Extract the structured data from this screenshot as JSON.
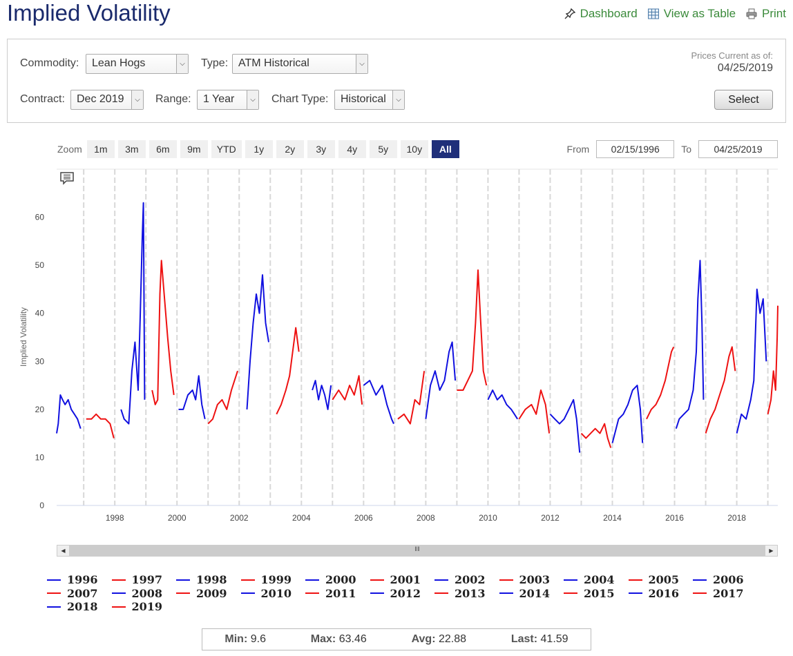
{
  "page_title": "Implied Volatility",
  "links": {
    "dashboard": "Dashboard",
    "view_table": "View as Table",
    "print": "Print"
  },
  "controls": {
    "commodity_label": "Commodity:",
    "commodity_value": "Lean Hogs",
    "type_label": "Type:",
    "type_value": "ATM Historical",
    "contract_label": "Contract:",
    "contract_value": "Dec 2019",
    "range_label": "Range:",
    "range_value": "1 Year",
    "charttype_label": "Chart Type:",
    "charttype_value": "Historical",
    "prices_current_label": "Prices Current as of:",
    "prices_current_date": "04/25/2019",
    "select_button": "Select"
  },
  "zoom": {
    "label": "Zoom",
    "buttons": [
      "1m",
      "3m",
      "6m",
      "9m",
      "YTD",
      "1y",
      "2y",
      "3y",
      "4y",
      "5y",
      "10y",
      "All"
    ],
    "active": "All"
  },
  "date_range": {
    "from_label": "From",
    "from_value": "02/15/1996",
    "to_label": "To",
    "to_value": "04/25/2019"
  },
  "stats": {
    "min_label": "Min:",
    "min_value": "9.6",
    "max_label": "Max:",
    "max_value": "63.46",
    "avg_label": "Avg:",
    "avg_value": "22.88",
    "last_label": "Last:",
    "last_value": "41.59"
  },
  "colors": {
    "blue": "#1010e0",
    "red": "#ee1111",
    "title": "#1a2a6c",
    "link": "#3a8a3a",
    "active_zoom": "#1f2f7a"
  },
  "chart_data": {
    "type": "line",
    "title": "",
    "xlabel": "",
    "ylabel": "Implied Volatility",
    "ylim": [
      0,
      70
    ],
    "yticks": [
      0,
      10,
      20,
      30,
      40,
      50,
      60
    ],
    "xlim": [
      1996.13,
      2019.32
    ],
    "xticks": [
      1998,
      2000,
      2002,
      2004,
      2006,
      2008,
      2010,
      2012,
      2014,
      2016,
      2018
    ],
    "grid": "vertical dashed",
    "legend_position": "bottom",
    "series": [
      {
        "name": "1996",
        "color": "#1010e0",
        "x": [
          1996.13,
          1996.18,
          1996.25,
          1996.32,
          1996.4,
          1996.5,
          1996.6,
          1996.7,
          1996.8,
          1996.9
        ],
        "y": [
          15,
          17,
          23,
          22,
          21,
          22,
          20,
          19,
          18,
          16
        ]
      },
      {
        "name": "1997",
        "color": "#ee1111",
        "x": [
          1997.08,
          1997.25,
          1997.4,
          1997.55,
          1997.7,
          1997.85,
          1997.97
        ],
        "y": [
          18,
          18,
          19,
          18,
          18,
          17,
          14
        ]
      },
      {
        "name": "1998",
        "color": "#1010e0",
        "x": [
          1998.2,
          1998.3,
          1998.45,
          1998.55,
          1998.65,
          1998.75,
          1998.82,
          1998.88,
          1998.92,
          1998.96
        ],
        "y": [
          20,
          18,
          17,
          28,
          34,
          24,
          40,
          55,
          63,
          22
        ]
      },
      {
        "name": "1999",
        "color": "#ee1111",
        "x": [
          1999.2,
          1999.3,
          1999.38,
          1999.45,
          1999.5,
          1999.6,
          1999.7,
          1999.8,
          1999.9
        ],
        "y": [
          24,
          21,
          22,
          44,
          51,
          43,
          35,
          28,
          23
        ]
      },
      {
        "name": "2000",
        "color": "#1010e0",
        "x": [
          2000.05,
          2000.2,
          2000.35,
          2000.5,
          2000.6,
          2000.7,
          2000.8,
          2000.9
        ],
        "y": [
          20,
          20,
          23,
          24,
          22,
          27,
          21,
          18
        ]
      },
      {
        "name": "2001",
        "color": "#ee1111",
        "x": [
          2001.0,
          2001.15,
          2001.3,
          2001.45,
          2001.6,
          2001.75,
          2001.85,
          2001.95
        ],
        "y": [
          17,
          18,
          21,
          22,
          20,
          24,
          26,
          28
        ]
      },
      {
        "name": "2002",
        "color": "#1010e0",
        "x": [
          2002.25,
          2002.35,
          2002.45,
          2002.55,
          2002.65,
          2002.75,
          2002.85,
          2002.95
        ],
        "y": [
          20,
          30,
          38,
          44,
          40,
          48,
          38,
          34
        ]
      },
      {
        "name": "2003",
        "color": "#ee1111",
        "x": [
          2003.2,
          2003.35,
          2003.5,
          2003.62,
          2003.72,
          2003.82,
          2003.92
        ],
        "y": [
          19,
          21,
          24,
          27,
          32,
          37,
          32
        ]
      },
      {
        "name": "2004",
        "color": "#1010e0",
        "x": [
          2004.35,
          2004.45,
          2004.55,
          2004.65,
          2004.75,
          2004.85,
          2004.95
        ],
        "y": [
          24,
          26,
          22,
          25,
          23,
          20,
          25
        ]
      },
      {
        "name": "2005",
        "color": "#ee1111",
        "x": [
          2005.0,
          2005.2,
          2005.4,
          2005.55,
          2005.7,
          2005.85,
          2005.95
        ],
        "y": [
          22,
          24,
          22,
          25,
          23,
          27,
          21
        ]
      },
      {
        "name": "2006",
        "color": "#1010e0",
        "x": [
          2006.0,
          2006.2,
          2006.4,
          2006.6,
          2006.75,
          2006.9,
          2006.97
        ],
        "y": [
          25,
          26,
          23,
          25,
          21,
          18,
          17
        ]
      },
      {
        "name": "2007",
        "color": "#ee1111",
        "x": [
          2007.1,
          2007.3,
          2007.5,
          2007.65,
          2007.8,
          2007.95
        ],
        "y": [
          18,
          19,
          17,
          22,
          21,
          28
        ]
      },
      {
        "name": "2008",
        "color": "#1010e0",
        "x": [
          2008.0,
          2008.15,
          2008.3,
          2008.45,
          2008.6,
          2008.75,
          2008.85,
          2008.95
        ],
        "y": [
          18,
          25,
          28,
          24,
          26,
          32,
          34,
          26
        ]
      },
      {
        "name": "2009",
        "color": "#ee1111",
        "x": [
          2009.0,
          2009.2,
          2009.35,
          2009.5,
          2009.6,
          2009.68,
          2009.75,
          2009.85,
          2009.95
        ],
        "y": [
          24,
          24,
          26,
          28,
          38,
          49,
          40,
          28,
          25
        ]
      },
      {
        "name": "2010",
        "color": "#1010e0",
        "x": [
          2010.0,
          2010.15,
          2010.3,
          2010.45,
          2010.6,
          2010.75,
          2010.85,
          2010.95
        ],
        "y": [
          22,
          24,
          22,
          23,
          21,
          20,
          19,
          18
        ]
      },
      {
        "name": "2011",
        "color": "#ee1111",
        "x": [
          2011.0,
          2011.2,
          2011.4,
          2011.55,
          2011.7,
          2011.85,
          2011.97
        ],
        "y": [
          18,
          20,
          21,
          19,
          24,
          21,
          15
        ]
      },
      {
        "name": "2012",
        "color": "#1010e0",
        "x": [
          2012.0,
          2012.15,
          2012.3,
          2012.45,
          2012.6,
          2012.75,
          2012.85,
          2012.95
        ],
        "y": [
          19,
          18,
          17,
          18,
          20,
          22,
          18,
          11
        ]
      },
      {
        "name": "2013",
        "color": "#ee1111",
        "x": [
          2013.0,
          2013.15,
          2013.3,
          2013.45,
          2013.6,
          2013.75,
          2013.85,
          2013.95
        ],
        "y": [
          15,
          14,
          15,
          16,
          15,
          17,
          14,
          12
        ]
      },
      {
        "name": "2014",
        "color": "#1010e0",
        "x": [
          2014.0,
          2014.2,
          2014.35,
          2014.5,
          2014.65,
          2014.8,
          2014.9,
          2014.97
        ],
        "y": [
          13,
          18,
          19,
          21,
          24,
          25,
          20,
          13
        ]
      },
      {
        "name": "2015",
        "color": "#ee1111",
        "x": [
          2015.1,
          2015.25,
          2015.4,
          2015.55,
          2015.7,
          2015.8,
          2015.9,
          2015.97
        ],
        "y": [
          18,
          20,
          21,
          23,
          26,
          29,
          32,
          33
        ]
      },
      {
        "name": "2016",
        "color": "#1010e0",
        "x": [
          2016.05,
          2016.15,
          2016.3,
          2016.45,
          2016.6,
          2016.7,
          2016.75,
          2016.82,
          2016.88,
          2016.93
        ],
        "y": [
          16,
          18,
          19,
          20,
          24,
          32,
          43,
          51,
          38,
          22
        ]
      },
      {
        "name": "2017",
        "color": "#ee1111",
        "x": [
          2017.0,
          2017.15,
          2017.3,
          2017.45,
          2017.6,
          2017.75,
          2017.85,
          2017.95
        ],
        "y": [
          15,
          18,
          20,
          23,
          26,
          31,
          33,
          28
        ]
      },
      {
        "name": "2018",
        "color": "#1010e0",
        "x": [
          2018.0,
          2018.15,
          2018.3,
          2018.45,
          2018.55,
          2018.65,
          2018.75,
          2018.85,
          2018.95
        ],
        "y": [
          15,
          19,
          18,
          22,
          26,
          45,
          40,
          43,
          30
        ]
      },
      {
        "name": "2019",
        "color": "#ee1111",
        "x": [
          2019.0,
          2019.1,
          2019.18,
          2019.25,
          2019.3,
          2019.32
        ],
        "y": [
          19,
          22,
          28,
          24,
          35,
          41.59
        ]
      }
    ]
  },
  "legend_items": [
    "1996",
    "1997",
    "1998",
    "1999",
    "2000",
    "2001",
    "2002",
    "2003",
    "2004",
    "2005",
    "2006",
    "2007",
    "2008",
    "2009",
    "2010",
    "2011",
    "2012",
    "2013",
    "2014",
    "2015",
    "2016",
    "2017",
    "2018",
    "2019"
  ]
}
